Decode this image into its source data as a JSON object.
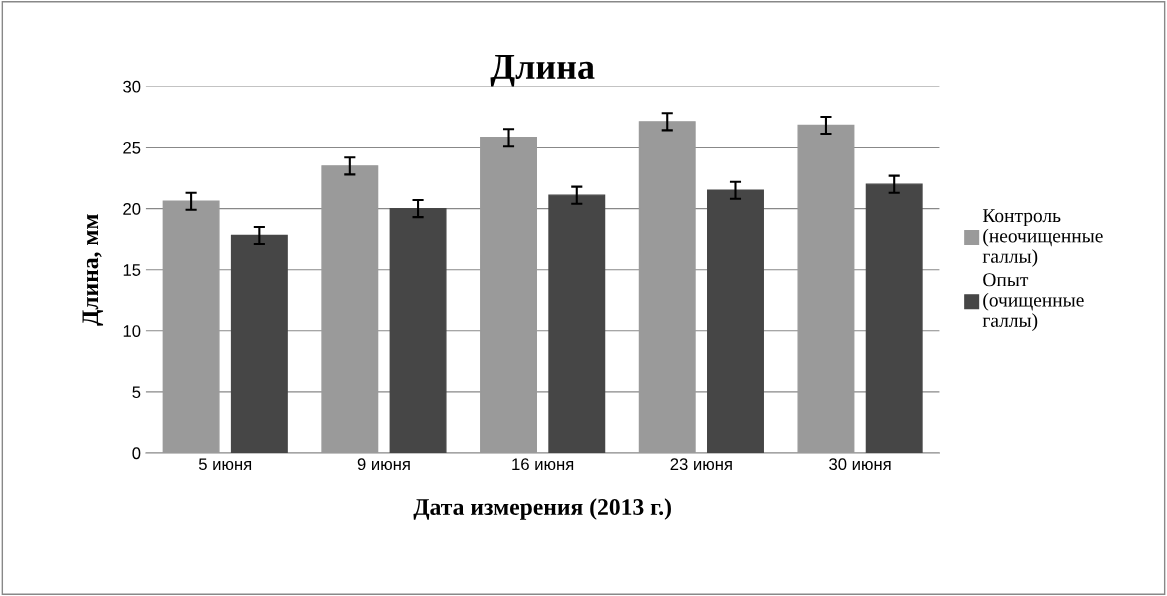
{
  "chart_data": {
    "type": "bar",
    "title": "Длина",
    "xlabel": "Дата измерения (2013 г.)",
    "ylabel": "Длина, мм",
    "categories": [
      "5 июня",
      "9 июня",
      "16 июня",
      "23 июня",
      "30 июня"
    ],
    "series": [
      {
        "name": "Контроль (неочищенные галлы)",
        "color": "#9a9a9a",
        "values": [
          20.6,
          23.5,
          25.8,
          27.1,
          26.8
        ],
        "errors": [
          0.7,
          0.7,
          0.7,
          0.7,
          0.7
        ]
      },
      {
        "name": "Опыт (очищенные галлы)",
        "color": "#464646",
        "values": [
          17.8,
          20.0,
          21.1,
          21.5,
          22.0
        ],
        "errors": [
          0.7,
          0.7,
          0.7,
          0.7,
          0.7
        ]
      }
    ],
    "ylim": [
      0,
      30
    ],
    "yticks": [
      0,
      5,
      10,
      15,
      20,
      25,
      30
    ],
    "grid": "y",
    "legend": "right"
  }
}
